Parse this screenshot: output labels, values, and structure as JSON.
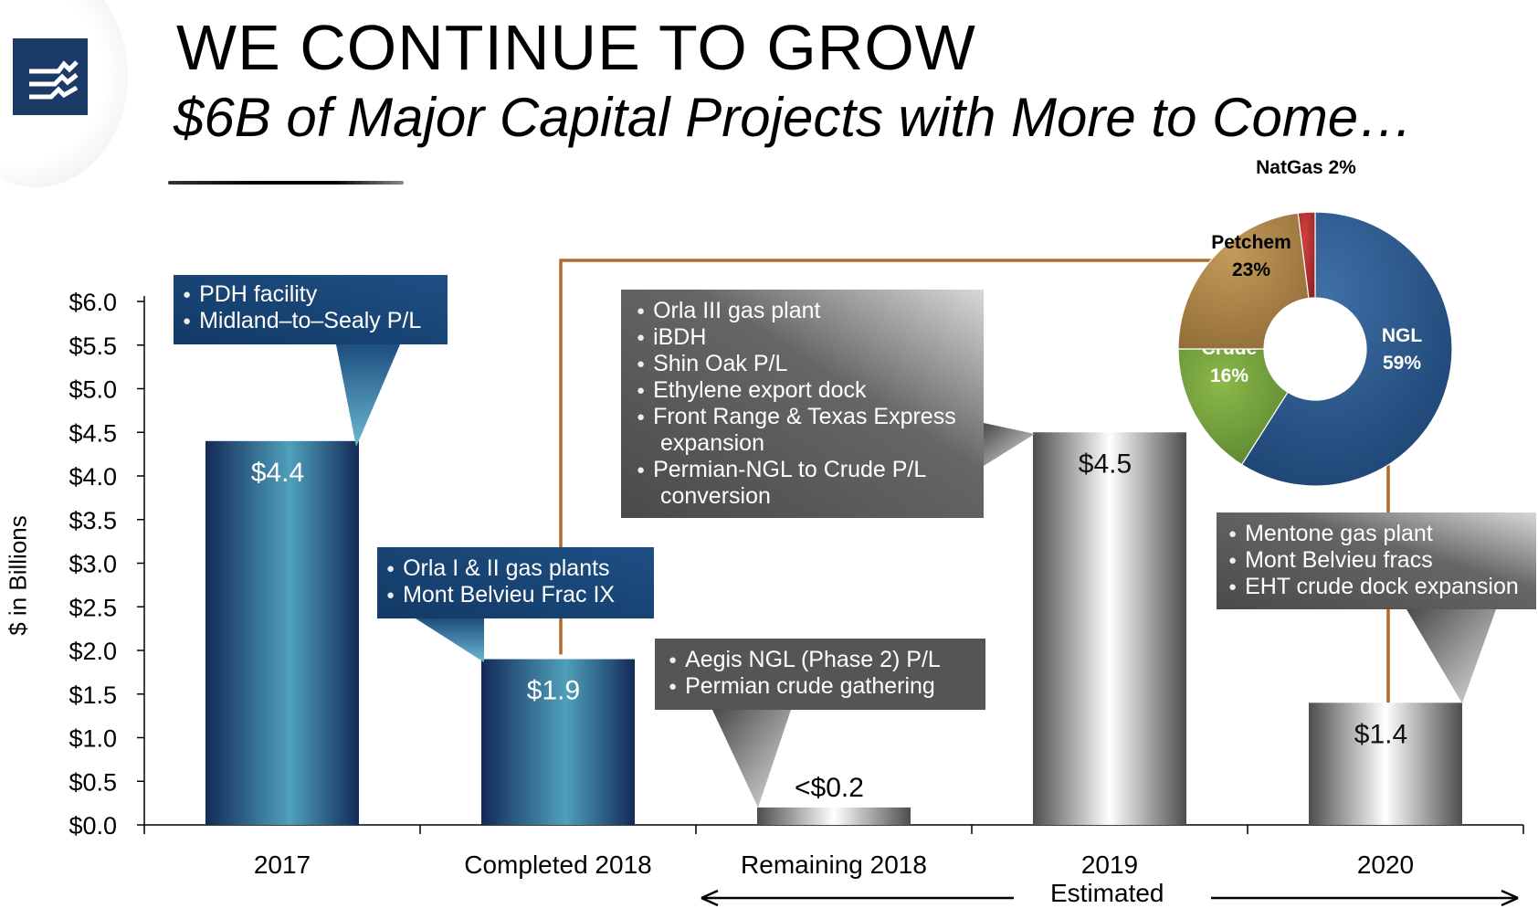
{
  "title": "WE CONTINUE TO GROW",
  "subtitle": "$6B of Major Capital Projects with More to Come…",
  "colors": {
    "blue_bar_dark": "#142d5c",
    "blue_bar_light": "#4b9ab5",
    "grey_bar_dark": "#4a4a4a",
    "grey_bar_light": "#ffffff",
    "bracket": "#b06a2c",
    "ngl": "#1f4f85",
    "crude": "#6f9c3a",
    "petchem": "#a67c3e",
    "natgas": "#b32a2a"
  },
  "logo": {
    "icon": "lightning-logo-icon"
  },
  "chart_data": [
    {
      "type": "bar",
      "title": "",
      "ylabel": "$ in Billions",
      "ylim": [
        0,
        6
      ],
      "yticks": [
        "$0.0",
        "$0.5",
        "$1.0",
        "$1.5",
        "$2.0",
        "$2.5",
        "$3.0",
        "$3.5",
        "$4.0",
        "$4.5",
        "$5.0",
        "$5.5",
        "$6.0"
      ],
      "categories": [
        "2017",
        "Completed 2018",
        "Remaining 2018",
        "2019",
        "2020"
      ],
      "values": [
        4.4,
        1.9,
        0.2,
        4.5,
        1.4
      ],
      "value_labels": [
        "$4.4",
        "$1.9",
        "<$0.2",
        "$4.5",
        "$1.4"
      ],
      "estimated_label": "Estimated",
      "estimated_span": [
        "Remaining 2018",
        "2020"
      ],
      "grid": false,
      "callouts": [
        {
          "category": "2017",
          "items": [
            "PDH facility",
            "Midland–to–Sealy P/L"
          ]
        },
        {
          "category": "Completed 2018",
          "items": [
            "Orla I & II gas plants",
            "Mont Belvieu Frac IX"
          ]
        },
        {
          "category": "Remaining 2018",
          "items": [
            "Aegis NGL (Phase 2) P/L",
            "Permian crude gathering"
          ]
        },
        {
          "category": "2019",
          "items": [
            "Orla III gas plant",
            "iBDH",
            "Shin Oak P/L",
            "Ethylene export dock",
            "Front Range & Texas Express expansion",
            "Permian-NGL to Crude P/L conversion"
          ]
        },
        {
          "category": "2020",
          "items": [
            "Mentone gas plant",
            "Mont Belvieu fracs",
            "EHT crude dock expansion"
          ]
        }
      ]
    },
    {
      "type": "pie",
      "donut": true,
      "slices": [
        {
          "label": "NGL",
          "value": 59,
          "display": "59%"
        },
        {
          "label": "Crude",
          "value": 16,
          "display": "16%"
        },
        {
          "label": "Petchem",
          "value": 23,
          "display": "23%"
        },
        {
          "label": "NatGas",
          "value": 2,
          "display": "2%"
        }
      ]
    }
  ]
}
